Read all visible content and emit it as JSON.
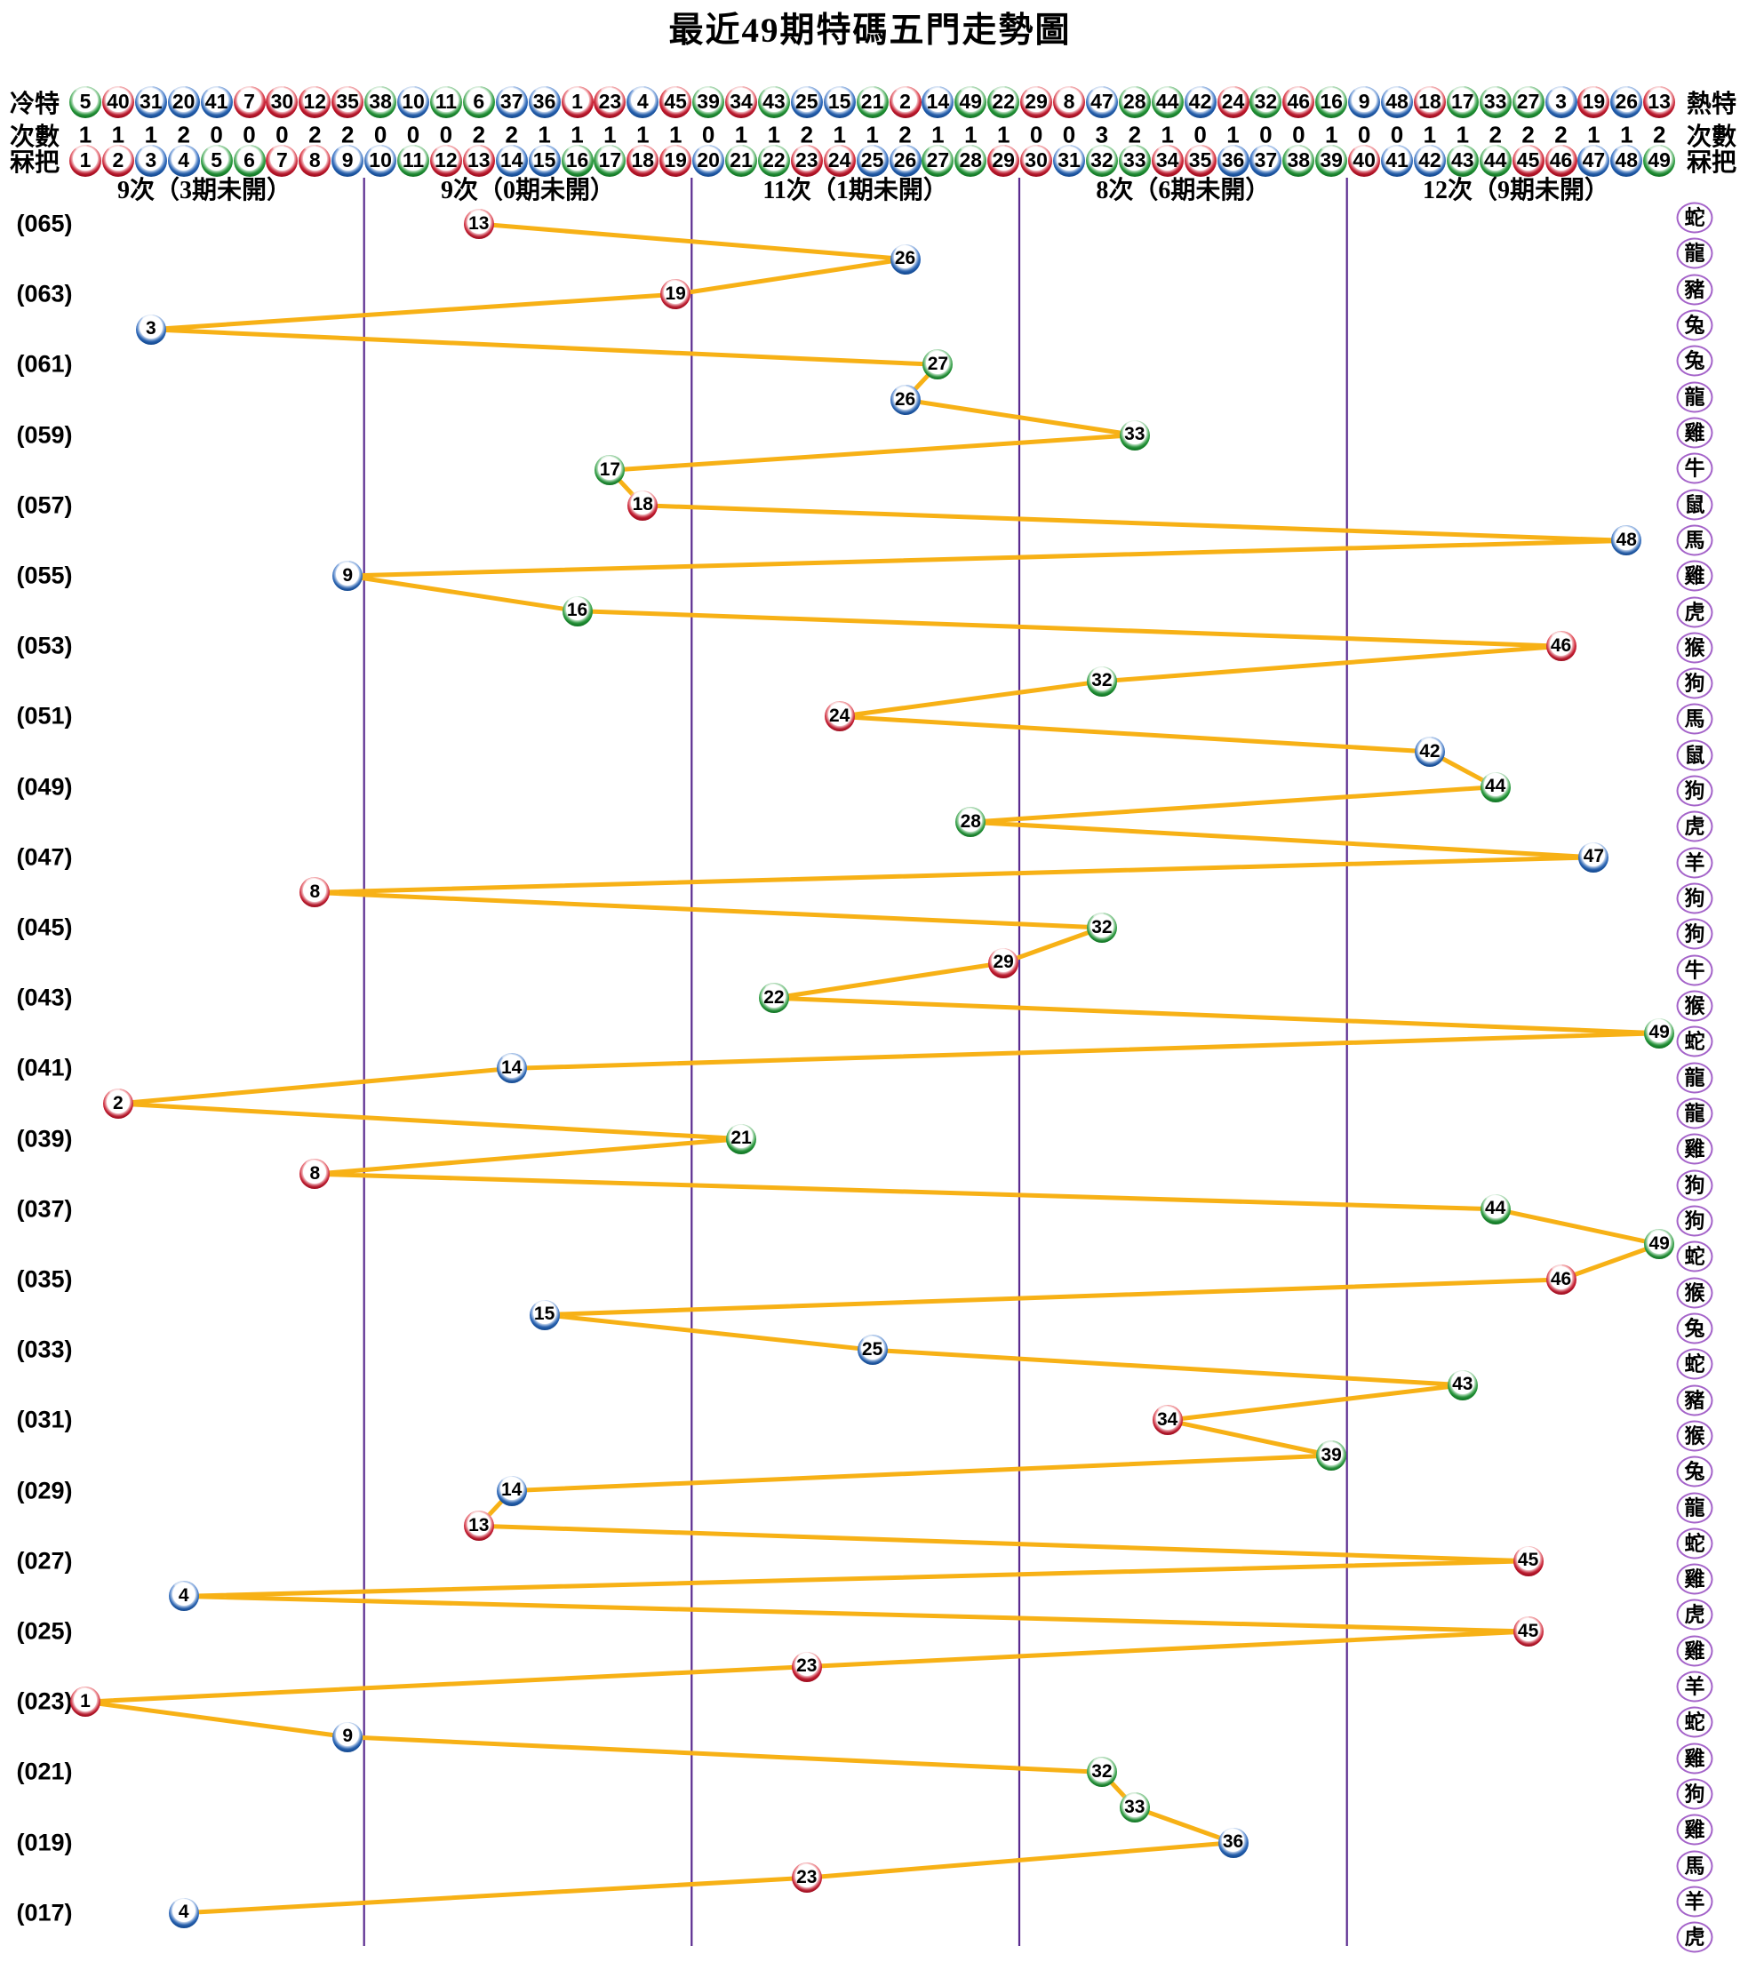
{
  "title": "最近49期特碼五門走勢圖",
  "header": {
    "cold_label_left": "冷特",
    "hot_label_right": "熱特",
    "count_label_left": "次數",
    "count_label_right": "次數",
    "number_label_left": "冧把",
    "number_label_right": "冧把",
    "cold_to_hot_numbers": [
      5,
      40,
      31,
      20,
      41,
      7,
      30,
      12,
      35,
      38,
      10,
      11,
      6,
      37,
      36,
      1,
      23,
      4,
      45,
      39,
      34,
      43,
      25,
      15,
      21,
      2,
      14,
      49,
      22,
      29,
      8,
      47,
      28,
      44,
      42,
      24,
      32,
      46,
      16,
      9,
      48,
      18,
      17,
      33,
      27,
      3,
      19,
      26,
      13
    ],
    "counts": [
      1,
      1,
      1,
      2,
      0,
      0,
      0,
      2,
      2,
      0,
      0,
      0,
      2,
      2,
      1,
      1,
      1,
      1,
      1,
      0,
      1,
      1,
      2,
      1,
      1,
      2,
      1,
      1,
      1,
      0,
      0,
      3,
      2,
      1,
      0,
      1,
      0,
      0,
      1,
      0,
      0,
      1,
      1,
      2,
      2,
      2,
      1,
      1,
      2
    ],
    "number_row": [
      1,
      2,
      3,
      4,
      5,
      6,
      7,
      8,
      9,
      10,
      11,
      12,
      13,
      14,
      15,
      16,
      17,
      18,
      19,
      20,
      21,
      22,
      23,
      24,
      25,
      26,
      27,
      28,
      29,
      30,
      31,
      32,
      33,
      34,
      35,
      36,
      37,
      38,
      39,
      40,
      41,
      42,
      43,
      44,
      45,
      46,
      47,
      48,
      49
    ]
  },
  "sections": [
    {
      "label": "9次（3期未開）"
    },
    {
      "label": "9次（0期未開）"
    },
    {
      "label": "11次（1期未開）"
    },
    {
      "label": "8次（6期未開）"
    },
    {
      "label": "12次（9期未開）"
    }
  ],
  "chart_data": {
    "type": "line",
    "title": "最近49期特碼五門走勢圖",
    "x_axis": "ball number columns 1-49",
    "y_axis": "period (065 top to 017 bottom)",
    "y_labels": [
      "(065)",
      "(063)",
      "(061)",
      "(059)",
      "(057)",
      "(055)",
      "(053)",
      "(051)",
      "(049)",
      "(047)",
      "(045)",
      "(043)",
      "(041)",
      "(039)",
      "(037)",
      "(035)",
      "(033)",
      "(031)",
      "(029)",
      "(027)",
      "(025)",
      "(023)",
      "(021)",
      "(019)",
      "(017)"
    ],
    "special_numbers_top_to_bottom": [
      13,
      26,
      19,
      3,
      27,
      26,
      33,
      17,
      18,
      48,
      9,
      16,
      46,
      32,
      24,
      42,
      44,
      28,
      47,
      8,
      32,
      29,
      22,
      49,
      14,
      2,
      21,
      8,
      44,
      49,
      46,
      15,
      25,
      43,
      34,
      39,
      14,
      13,
      45,
      4,
      45,
      23,
      1,
      9,
      32,
      33,
      36,
      23,
      4
    ],
    "zodiacs_top_to_bottom": [
      "蛇",
      "龍",
      "豬",
      "兔",
      "兔",
      "龍",
      "雞",
      "牛",
      "鼠",
      "馬",
      "雞",
      "虎",
      "猴",
      "狗",
      "馬",
      "鼠",
      "狗",
      "虎",
      "羊",
      "狗",
      "狗",
      "牛",
      "猴",
      "蛇",
      "龍",
      "龍",
      "雞",
      "狗",
      "狗",
      "蛇",
      "猴",
      "兔",
      "蛇",
      "豬",
      "猴",
      "兔",
      "龍",
      "蛇",
      "雞",
      "虎",
      "雞",
      "羊",
      "蛇",
      "雞",
      "狗",
      "雞",
      "馬",
      "羊",
      "虎"
    ]
  },
  "colors": {
    "trend_line": "#F7B116",
    "section_divider": "#5A2B8F",
    "zodiac_ring": "#A463C9",
    "ball_red": "#C01328",
    "ball_blue": "#1F5CAE",
    "ball_green": "#1D9132",
    "red_numbers": [
      1,
      2,
      7,
      8,
      12,
      13,
      18,
      19,
      23,
      24,
      29,
      30,
      34,
      35,
      40,
      45,
      46
    ],
    "blue_numbers": [
      3,
      4,
      9,
      10,
      14,
      15,
      20,
      25,
      26,
      31,
      36,
      37,
      41,
      42,
      47,
      48
    ],
    "green_numbers": [
      5,
      6,
      11,
      16,
      17,
      21,
      22,
      27,
      28,
      32,
      33,
      38,
      39,
      43,
      44,
      49
    ]
  }
}
